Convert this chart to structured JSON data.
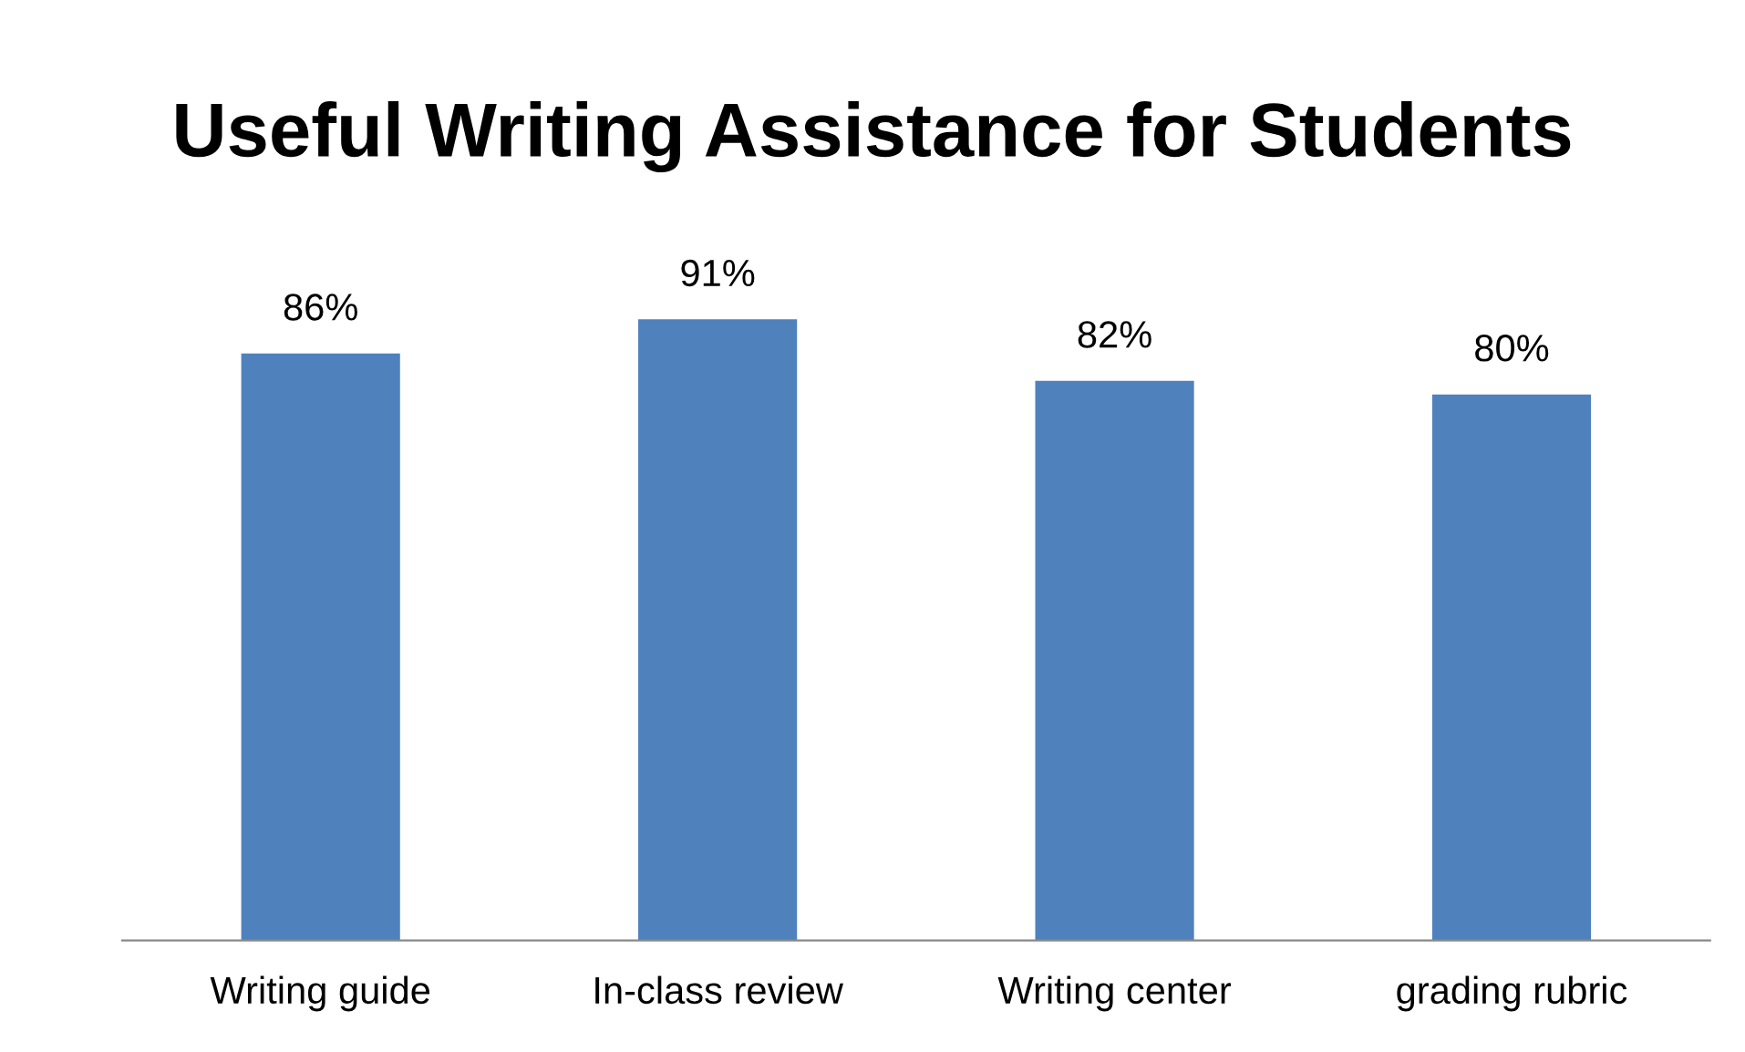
{
  "chart_data": {
    "type": "bar",
    "title": "Useful Writing Assistance for Students",
    "categories": [
      "Writing guide",
      "In-class review",
      "Writing center",
      "grading rubric"
    ],
    "values": [
      86,
      91,
      82,
      80
    ],
    "value_labels": [
      "86%",
      "91%",
      "82%",
      "80%"
    ],
    "color": "#4f81bd",
    "grid": false,
    "legend": false
  }
}
